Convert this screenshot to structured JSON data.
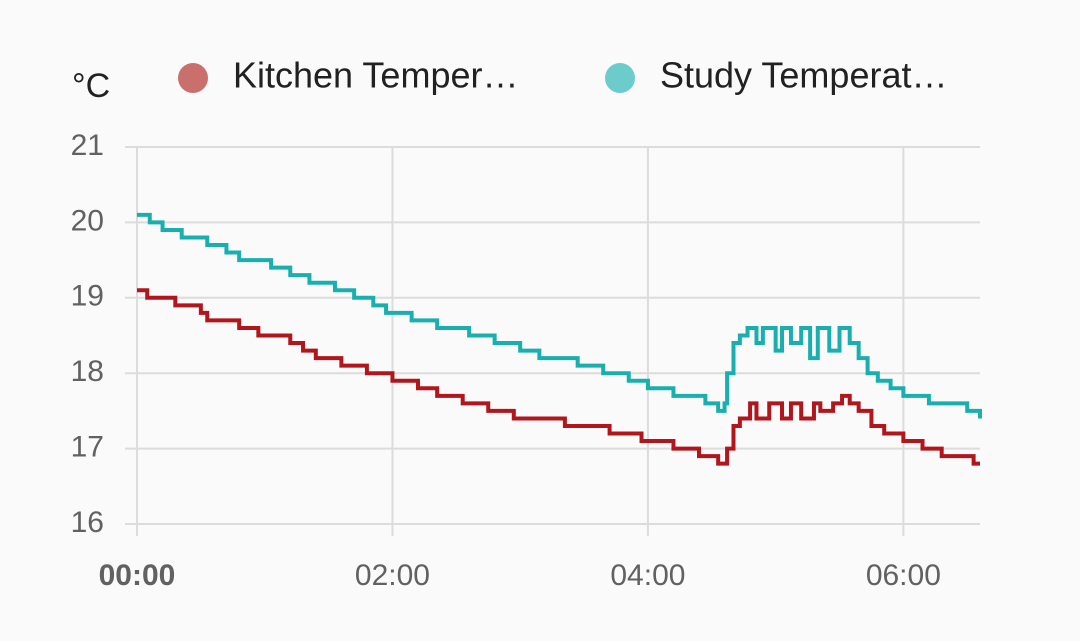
{
  "chart_data": {
    "type": "line",
    "step": true,
    "unit": "°C",
    "series": [
      {
        "name": "Kitchen Temper…",
        "color": "#b0161c",
        "legend_color": "#c9706d",
        "x": [
          0,
          0.08,
          0.3,
          0.5,
          0.55,
          0.8,
          0.95,
          1.2,
          1.3,
          1.4,
          1.6,
          1.8,
          2.0,
          2.2,
          2.35,
          2.55,
          2.75,
          2.95,
          3.35,
          3.7,
          3.95,
          4.2,
          4.4,
          4.55,
          4.62,
          4.67,
          4.72,
          4.8,
          4.85,
          4.95,
          5.05,
          5.12,
          5.2,
          5.3,
          5.35,
          5.45,
          5.52,
          5.58,
          5.65,
          5.75,
          5.85,
          6.0,
          6.15,
          6.3,
          6.55,
          6.6
        ],
        "values": [
          19.1,
          19.0,
          18.9,
          18.8,
          18.7,
          18.6,
          18.5,
          18.4,
          18.3,
          18.2,
          18.1,
          18.0,
          17.9,
          17.8,
          17.7,
          17.6,
          17.5,
          17.4,
          17.3,
          17.2,
          17.1,
          17.0,
          16.9,
          16.8,
          17.0,
          17.3,
          17.4,
          17.6,
          17.4,
          17.6,
          17.4,
          17.6,
          17.4,
          17.6,
          17.5,
          17.6,
          17.7,
          17.6,
          17.5,
          17.3,
          17.2,
          17.1,
          17.0,
          16.9,
          16.8,
          16.8
        ]
      },
      {
        "name": "Study Temperat…",
        "color": "#1aafaf",
        "legend_color": "#6ccccc",
        "x": [
          0,
          0.1,
          0.2,
          0.35,
          0.55,
          0.7,
          0.8,
          1.05,
          1.2,
          1.35,
          1.55,
          1.7,
          1.85,
          1.95,
          2.15,
          2.35,
          2.6,
          2.8,
          3.0,
          3.15,
          3.45,
          3.65,
          3.85,
          4.0,
          4.2,
          4.45,
          4.55,
          4.6,
          4.62,
          4.67,
          4.72,
          4.78,
          4.85,
          4.9,
          5.0,
          5.05,
          5.12,
          5.2,
          5.27,
          5.33,
          5.42,
          5.5,
          5.58,
          5.65,
          5.72,
          5.8,
          5.9,
          6.0,
          6.2,
          6.5,
          6.6
        ],
        "values": [
          20.1,
          20.0,
          19.9,
          19.8,
          19.7,
          19.6,
          19.5,
          19.4,
          19.3,
          19.2,
          19.1,
          19.0,
          18.9,
          18.8,
          18.7,
          18.6,
          18.5,
          18.4,
          18.3,
          18.2,
          18.1,
          18.0,
          17.9,
          17.8,
          17.7,
          17.6,
          17.5,
          17.6,
          18.0,
          18.4,
          18.5,
          18.6,
          18.4,
          18.6,
          18.3,
          18.6,
          18.4,
          18.6,
          18.2,
          18.6,
          18.3,
          18.6,
          18.4,
          18.2,
          18.0,
          17.9,
          17.8,
          17.7,
          17.6,
          17.5,
          17.4
        ]
      }
    ],
    "xlim": [
      0,
      6.6
    ],
    "xticks": [
      {
        "value": 0,
        "label": "00:00"
      },
      {
        "value": 2,
        "label": "02:00"
      },
      {
        "value": 4,
        "label": "04:00"
      },
      {
        "value": 6,
        "label": "06:00"
      }
    ],
    "ylim": [
      16,
      21
    ],
    "yticks": [
      16,
      17,
      18,
      19,
      20,
      21
    ],
    "grid": true
  }
}
